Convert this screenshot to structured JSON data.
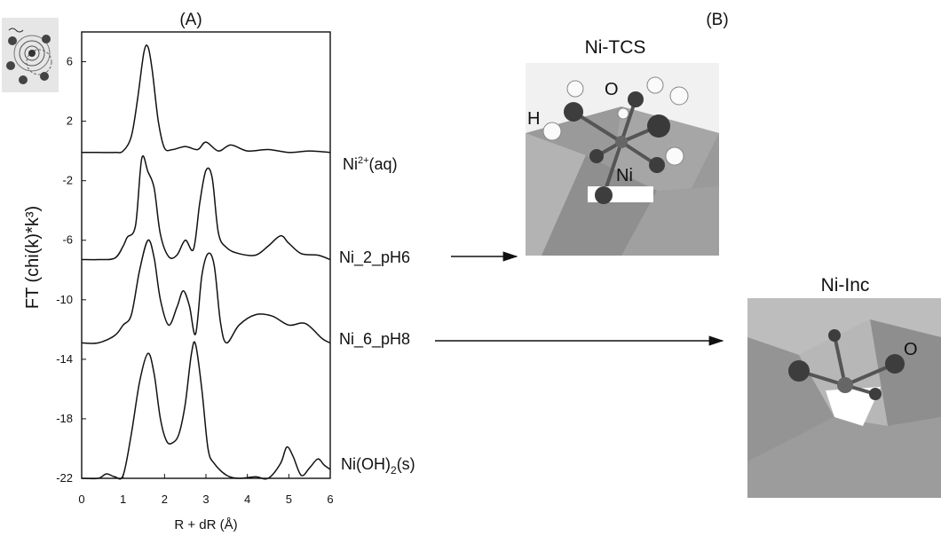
{
  "panel_a_label": "(A)",
  "panel_b_label": "(B)",
  "chart_data": {
    "type": "line",
    "title": "",
    "xlabel": "R + dR (Å)",
    "ylabel": "FT (chi(k)*k³)",
    "xlim": [
      0,
      6
    ],
    "ylim": [
      -22,
      8
    ],
    "x_ticks": [
      0,
      1,
      2,
      3,
      4,
      5,
      6
    ],
    "y_ticks": [
      -22,
      -18,
      -14,
      -10,
      -6,
      -2,
      2,
      6
    ],
    "grid": false,
    "series": [
      {
        "name": "Ni²⁺(aq)",
        "x": [
          0,
          0.4,
          0.8,
          1.0,
          1.2,
          1.35,
          1.5,
          1.6,
          1.7,
          1.85,
          2.0,
          2.2,
          2.5,
          2.8,
          3.0,
          3.3,
          3.6,
          4.0,
          4.5,
          5.0,
          5.5,
          6.0
        ],
        "y": [
          -0.1,
          -0.1,
          -0.1,
          0.0,
          1.0,
          3.5,
          6.6,
          7.0,
          5.5,
          2.0,
          0.2,
          0.1,
          0.3,
          0.1,
          0.6,
          0.0,
          0.4,
          0.0,
          0.1,
          -0.1,
          0.0,
          -0.1
        ]
      },
      {
        "name": "Ni_2_pH6",
        "x": [
          0,
          0.4,
          0.8,
          1.0,
          1.1,
          1.3,
          1.45,
          1.6,
          1.75,
          1.9,
          2.1,
          2.3,
          2.5,
          2.7,
          2.85,
          3.0,
          3.15,
          3.3,
          3.5,
          3.8,
          4.2,
          4.5,
          4.8,
          5.0,
          5.3,
          5.7,
          6.0
        ],
        "y": [
          -7.3,
          -7.3,
          -7.2,
          -6.4,
          -5.8,
          -5.0,
          -0.5,
          -1.4,
          -2.5,
          -5.6,
          -7.1,
          -7.0,
          -6.0,
          -6.6,
          -3.5,
          -1.3,
          -1.8,
          -5.5,
          -6.5,
          -6.9,
          -7.0,
          -6.4,
          -5.7,
          -6.2,
          -6.9,
          -7.0,
          -7.3
        ]
      },
      {
        "name": "Ni_6_pH8",
        "x": [
          0,
          0.4,
          0.8,
          1.0,
          1.2,
          1.4,
          1.6,
          1.75,
          1.9,
          2.1,
          2.3,
          2.45,
          2.6,
          2.75,
          2.9,
          3.05,
          3.2,
          3.35,
          3.5,
          3.8,
          4.2,
          4.6,
          5.0,
          5.4,
          5.8,
          6.0
        ],
        "y": [
          -12.9,
          -12.9,
          -12.4,
          -11.7,
          -11.0,
          -8.0,
          -6.0,
          -7.2,
          -10.0,
          -11.7,
          -10.5,
          -9.4,
          -10.4,
          -12.3,
          -8.4,
          -6.9,
          -7.7,
          -11.5,
          -12.9,
          -11.7,
          -11.0,
          -11.1,
          -11.7,
          -11.6,
          -12.6,
          -12.9
        ]
      },
      {
        "name": "Ni(OH)₂(s)",
        "x": [
          0,
          0.4,
          0.6,
          0.8,
          1.0,
          1.2,
          1.4,
          1.6,
          1.75,
          1.9,
          2.05,
          2.2,
          2.35,
          2.5,
          2.65,
          2.75,
          2.9,
          3.05,
          3.2,
          3.5,
          3.8,
          4.2,
          4.5,
          4.8,
          4.95,
          5.1,
          5.3,
          5.5,
          5.7,
          5.85,
          6.0
        ],
        "y": [
          -22,
          -22,
          -21.7,
          -21.9,
          -21.8,
          -19.0,
          -15.5,
          -13.6,
          -15.0,
          -18.0,
          -19.5,
          -19.6,
          -19.0,
          -17.0,
          -13.6,
          -13.0,
          -16.0,
          -20.0,
          -21.0,
          -21.8,
          -22,
          -21.9,
          -22,
          -21.0,
          -19.9,
          -20.5,
          -21.8,
          -21.3,
          -20.7,
          -21.1,
          -21.4
        ]
      }
    ]
  },
  "series_labels": {
    "aq": {
      "base": "Ni",
      "sup": "2+",
      "rest": "(aq)"
    },
    "ph6": "Ni_2_pH6",
    "ph8": "Ni_6_pH8",
    "oh": {
      "base": "Ni(OH)",
      "sub": "2",
      "rest": "(s)"
    }
  },
  "structures": {
    "tcs": {
      "title": "Ni-TCS",
      "atoms": {
        "o": "O",
        "h": "H",
        "ni": "Ni"
      }
    },
    "inc": {
      "title": "Ni-Inc",
      "atoms": {
        "o": "O"
      }
    }
  }
}
